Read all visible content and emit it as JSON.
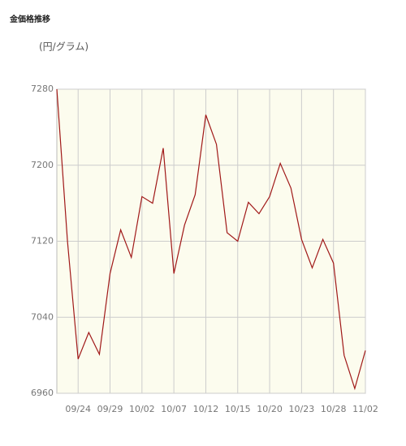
{
  "chart_data": {
    "type": "line",
    "title": "金価格推移",
    "subtitle": "(円/グラム)",
    "categories": [
      null,
      null,
      "09/24",
      null,
      null,
      "09/29",
      null,
      null,
      "10/02",
      null,
      null,
      "10/07",
      null,
      null,
      "10/12",
      null,
      null,
      "10/15",
      null,
      null,
      "10/20",
      null,
      null,
      "10/23",
      null,
      null,
      "10/28",
      null,
      null,
      "11/02"
    ],
    "series": [
      {
        "name": "金価格",
        "color": "#a01818",
        "values": [
          7280,
          7120,
          6996,
          7024,
          7001,
          7086,
          7132,
          7103,
          7167,
          7160,
          7218,
          7086,
          7137,
          7169,
          7253,
          7222,
          7129,
          7120,
          7161,
          7149,
          7167,
          7202,
          7176,
          7122,
          7092,
          7122,
          7097,
          7000,
          6965,
          7005
        ]
      }
    ],
    "ylim": [
      6960,
      7280
    ],
    "yticks": [
      6960,
      7040,
      7120,
      7200,
      7280
    ],
    "grid": true,
    "background": "#fcfcee"
  }
}
